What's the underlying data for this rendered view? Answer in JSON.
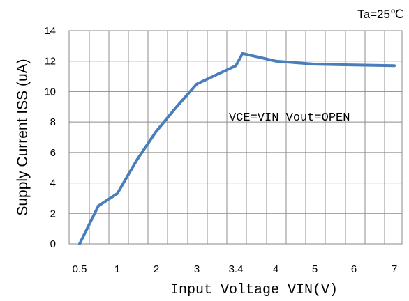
{
  "chart_data": {
    "type": "line",
    "condition_label": "Ta=25℃",
    "annotation": "VCE=VIN Vout=OPEN",
    "xlabel": "Input Voltage VIN(V)",
    "ylabel": "Supply Current ISS (uA)",
    "ylim": [
      0,
      14
    ],
    "yticks": [
      0,
      2,
      4,
      6,
      8,
      10,
      12,
      14
    ],
    "xticks": [
      "0.5",
      "1",
      "2",
      "3",
      "3.4",
      "4",
      "5",
      "6",
      "7"
    ],
    "grid": true,
    "line_color": "#4A7EBB",
    "series": [
      {
        "x": [
          0.5,
          0.75,
          1.0,
          1.5,
          2.0,
          2.5,
          3.0,
          3.4,
          3.5,
          4.0,
          5.0,
          6.0,
          7.0
        ],
        "values": [
          0.0,
          2.5,
          3.3,
          5.5,
          7.4,
          9.0,
          10.5,
          11.7,
          12.5,
          12.0,
          11.8,
          11.75,
          11.7
        ]
      }
    ]
  }
}
